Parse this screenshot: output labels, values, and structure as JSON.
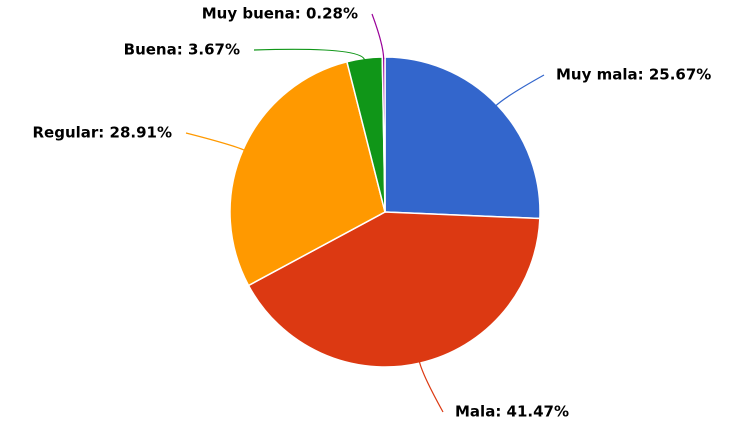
{
  "chart_data": {
    "type": "pie",
    "values": [
      25.67,
      41.47,
      28.91,
      3.67,
      0.28
    ],
    "value_labels": [
      "Muy mala: 25.67%",
      "Mala: 41.47%",
      "Regular: 28.91%",
      "Buena: 3.67%",
      "Muy buena: 0.28%"
    ],
    "colors": [
      "#3366cc",
      "#dc3912",
      "#ff9900",
      "#109618",
      "#990099"
    ]
  }
}
